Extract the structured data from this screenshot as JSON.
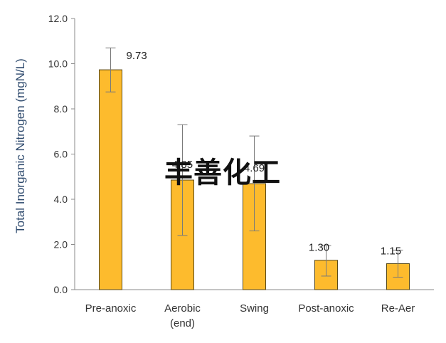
{
  "chart_data": {
    "type": "bar",
    "title": "",
    "xlabel": "",
    "ylabel": "Total Inorganic Nitrogen (mgN/L)",
    "ylim": [
      0,
      12
    ],
    "yticks": [
      "0.0",
      "2.0",
      "4.0",
      "6.0",
      "8.0",
      "10.0",
      "12.0"
    ],
    "grid": false,
    "categories": [
      {
        "line1": "Pre-anoxic",
        "line2": ""
      },
      {
        "line1": "Aerobic",
        "line2": "(end)"
      },
      {
        "line1": "Swing",
        "line2": ""
      },
      {
        "line1": "Post-anoxic",
        "line2": ""
      },
      {
        "line1": "Re-Aer",
        "line2": ""
      }
    ],
    "values": [
      9.73,
      4.85,
      4.69,
      1.3,
      1.15
    ],
    "value_labels": [
      "9.73",
      "4.85",
      "4.69",
      "1.30",
      "1.15"
    ],
    "error_low": [
      8.75,
      2.4,
      2.6,
      0.6,
      0.55
    ],
    "error_high": [
      10.7,
      7.3,
      6.8,
      1.95,
      1.75
    ],
    "bar_color": "#FDBB2D",
    "bar_edge_color": "#5a4a1a",
    "watermark": "丰善化工"
  }
}
